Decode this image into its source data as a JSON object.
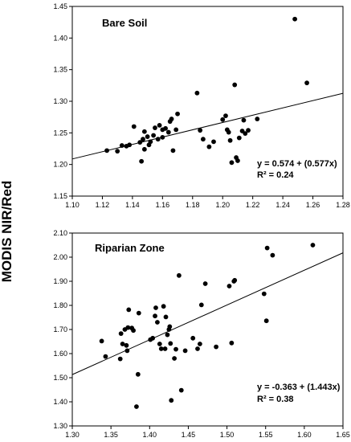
{
  "chart_data": {
    "ylabel": "MODIS NIR/Red",
    "panels": [
      {
        "type": "scatter",
        "title": "Bare Soil",
        "equation": "y = 0.574 + (0.577x)",
        "r2": "R² = 0.24",
        "xlim": [
          1.1,
          1.28
        ],
        "ylim": [
          1.15,
          1.45
        ],
        "xticks": [
          "1.10",
          "1.12",
          "1.14",
          "1.16",
          "1.18",
          "1.20",
          "1.22",
          "1.24",
          "1.26",
          "1.28"
        ],
        "yticks": [
          "1.15",
          "1.20",
          "1.25",
          "1.30",
          "1.35",
          "1.40",
          "1.45"
        ],
        "fit": {
          "intercept": 0.574,
          "slope": 0.577
        },
        "points": [
          [
            1.123,
            1.222
          ],
          [
            1.13,
            1.221
          ],
          [
            1.133,
            1.23
          ],
          [
            1.136,
            1.229
          ],
          [
            1.138,
            1.231
          ],
          [
            1.141,
            1.26
          ],
          [
            1.145,
            1.235
          ],
          [
            1.146,
            1.205
          ],
          [
            1.147,
            1.24
          ],
          [
            1.148,
            1.224
          ],
          [
            1.148,
            1.252
          ],
          [
            1.15,
            1.244
          ],
          [
            1.151,
            1.231
          ],
          [
            1.152,
            1.236
          ],
          [
            1.154,
            1.246
          ],
          [
            1.155,
            1.258
          ],
          [
            1.157,
            1.24
          ],
          [
            1.158,
            1.262
          ],
          [
            1.16,
            1.243
          ],
          [
            1.16,
            1.255
          ],
          [
            1.162,
            1.257
          ],
          [
            1.164,
            1.251
          ],
          [
            1.165,
            1.268
          ],
          [
            1.166,
            1.272
          ],
          [
            1.167,
            1.222
          ],
          [
            1.169,
            1.255
          ],
          [
            1.17,
            1.28
          ],
          [
            1.183,
            1.313
          ],
          [
            1.185,
            1.254
          ],
          [
            1.187,
            1.24
          ],
          [
            1.191,
            1.228
          ],
          [
            1.194,
            1.236
          ],
          [
            1.2,
            1.271
          ],
          [
            1.202,
            1.277
          ],
          [
            1.203,
            1.255
          ],
          [
            1.204,
            1.251
          ],
          [
            1.205,
            1.238
          ],
          [
            1.206,
            1.203
          ],
          [
            1.208,
            1.326
          ],
          [
            1.209,
            1.211
          ],
          [
            1.21,
            1.206
          ],
          [
            1.211,
            1.242
          ],
          [
            1.213,
            1.253
          ],
          [
            1.214,
            1.27
          ],
          [
            1.215,
            1.249
          ],
          [
            1.217,
            1.254
          ],
          [
            1.223,
            1.272
          ],
          [
            1.248,
            1.43
          ],
          [
            1.256,
            1.329
          ]
        ]
      },
      {
        "type": "scatter",
        "title": "Riparian Zone",
        "equation": "y = -0.363 + (1.443x)",
        "r2": "R² = 0.38",
        "xlim": [
          1.3,
          1.65
        ],
        "ylim": [
          1.3,
          2.1
        ],
        "xticks": [
          "1.30",
          "1.35",
          "1.40",
          "1.45",
          "1.50",
          "1.55",
          "1.60",
          "1.65"
        ],
        "yticks": [
          "1.30",
          "1.40",
          "1.50",
          "1.60",
          "1.70",
          "1.80",
          "1.90",
          "2.00",
          "2.10"
        ],
        "fit": {
          "intercept": -0.363,
          "slope": 1.443
        },
        "points": [
          [
            1.338,
            1.652
          ],
          [
            1.343,
            1.588
          ],
          [
            1.362,
            1.578
          ],
          [
            1.363,
            1.683
          ],
          [
            1.365,
            1.64
          ],
          [
            1.368,
            1.7
          ],
          [
            1.37,
            1.634
          ],
          [
            1.371,
            1.612
          ],
          [
            1.372,
            1.708
          ],
          [
            1.373,
            1.782
          ],
          [
            1.377,
            1.706
          ],
          [
            1.379,
            1.696
          ],
          [
            1.383,
            1.38
          ],
          [
            1.385,
            1.514
          ],
          [
            1.386,
            1.768
          ],
          [
            1.401,
            1.658
          ],
          [
            1.404,
            1.664
          ],
          [
            1.407,
            1.756
          ],
          [
            1.408,
            1.79
          ],
          [
            1.41,
            1.73
          ],
          [
            1.413,
            1.64
          ],
          [
            1.415,
            1.62
          ],
          [
            1.418,
            1.796
          ],
          [
            1.42,
            1.62
          ],
          [
            1.421,
            1.752
          ],
          [
            1.423,
            1.678
          ],
          [
            1.425,
            1.7
          ],
          [
            1.426,
            1.712
          ],
          [
            1.427,
            1.642
          ],
          [
            1.428,
            1.406
          ],
          [
            1.432,
            1.58
          ],
          [
            1.434,
            1.618
          ],
          [
            1.438,
            1.924
          ],
          [
            1.441,
            1.448
          ],
          [
            1.446,
            1.612
          ],
          [
            1.456,
            1.664
          ],
          [
            1.462,
            1.62
          ],
          [
            1.465,
            1.64
          ],
          [
            1.467,
            1.802
          ],
          [
            1.472,
            1.89
          ],
          [
            1.486,
            1.628
          ],
          [
            1.503,
            1.88
          ],
          [
            1.506,
            1.644
          ],
          [
            1.509,
            1.9
          ],
          [
            1.51,
            1.904
          ],
          [
            1.548,
            1.848
          ],
          [
            1.551,
            1.736
          ],
          [
            1.552,
            2.038
          ],
          [
            1.559,
            2.008
          ],
          [
            1.611,
            2.05
          ]
        ]
      }
    ]
  }
}
